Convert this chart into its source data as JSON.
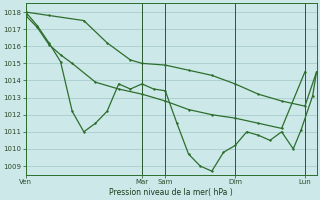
{
  "xlabel": "Pression niveau de la mer( hPa )",
  "bg_color": "#cce8e8",
  "grid_color": "#aacccc",
  "line_color": "#2d6e2d",
  "ylim": [
    1008.5,
    1018.5
  ],
  "yticks": [
    1009,
    1010,
    1011,
    1012,
    1013,
    1014,
    1015,
    1016,
    1017,
    1018
  ],
  "xlim": [
    0,
    150
  ],
  "xtick_positions": [
    0,
    60,
    72,
    108,
    144
  ],
  "xtick_labels": [
    "Ven",
    "Mar",
    "Sam",
    "Dim",
    "Lun"
  ],
  "vline_positions": [
    0,
    60,
    72,
    108,
    144
  ],
  "line1": [
    [
      0,
      1018.0
    ],
    [
      6,
      1017.2
    ],
    [
      12,
      1016.2
    ],
    [
      18,
      1015.1
    ],
    [
      24,
      1012.2
    ],
    [
      30,
      1011.0
    ],
    [
      36,
      1011.5
    ],
    [
      42,
      1012.2
    ],
    [
      48,
      1013.8
    ],
    [
      54,
      1013.5
    ],
    [
      60,
      1013.8
    ],
    [
      66,
      1013.5
    ],
    [
      72,
      1013.4
    ],
    [
      78,
      1011.5
    ],
    [
      84,
      1009.7
    ],
    [
      90,
      1009.0
    ],
    [
      96,
      1008.7
    ],
    [
      102,
      1009.8
    ],
    [
      108,
      1010.2
    ],
    [
      114,
      1011.0
    ],
    [
      120,
      1010.8
    ],
    [
      126,
      1010.5
    ],
    [
      132,
      1011.0
    ],
    [
      138,
      1010.0
    ],
    [
      142,
      1011.1
    ],
    [
      148,
      1013.1
    ],
    [
      150,
      1014.5
    ]
  ],
  "line2": [
    [
      0,
      1018.0
    ],
    [
      12,
      1017.8
    ],
    [
      30,
      1017.5
    ],
    [
      42,
      1016.2
    ],
    [
      54,
      1015.2
    ],
    [
      60,
      1015.0
    ],
    [
      72,
      1014.9
    ],
    [
      84,
      1014.6
    ],
    [
      96,
      1014.3
    ],
    [
      108,
      1013.8
    ],
    [
      120,
      1013.2
    ],
    [
      132,
      1012.8
    ],
    [
      144,
      1012.5
    ],
    [
      150,
      1014.5
    ]
  ],
  "line3": [
    [
      0,
      1017.8
    ],
    [
      6,
      1017.1
    ],
    [
      12,
      1016.1
    ],
    [
      18,
      1015.5
    ],
    [
      24,
      1015.0
    ],
    [
      36,
      1013.9
    ],
    [
      48,
      1013.5
    ],
    [
      60,
      1013.2
    ],
    [
      72,
      1012.8
    ],
    [
      84,
      1012.3
    ],
    [
      96,
      1012.0
    ],
    [
      108,
      1011.8
    ],
    [
      120,
      1011.5
    ],
    [
      132,
      1011.2
    ],
    [
      144,
      1014.5
    ]
  ]
}
